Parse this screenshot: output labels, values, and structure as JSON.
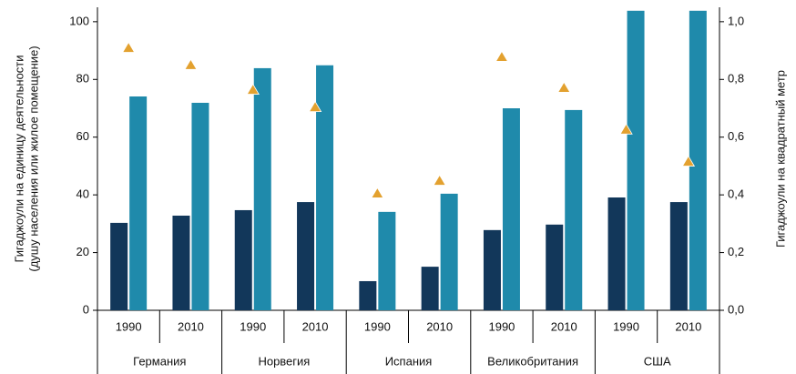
{
  "chart_data": {
    "type": "bar",
    "ylabel": [
      "Гигаджоули на единицу деятельности",
      "(душу населения или жилое помещение)"
    ],
    "y2label": "Гигаджоули на квадратный метр",
    "groups": [
      "Германия",
      "Норвегия",
      "Испания",
      "Великобритания",
      "США"
    ],
    "categories": [
      "1990",
      "2010",
      "1990",
      "2010",
      "1990",
      "2010",
      "1990",
      "2010",
      "1990",
      "2010"
    ],
    "series": [
      {
        "color": "#12375a",
        "values": [
          30.3,
          32.8,
          34.7,
          37.5,
          10.1,
          15.1,
          27.8,
          29.7,
          39.1,
          37.5
        ]
      },
      {
        "color": "#1f8aab",
        "values": [
          74.1,
          71.9,
          83.9,
          84.9,
          34.1,
          40.4,
          70,
          69.4,
          103.8,
          103.8
        ]
      },
      {
        "color": "#e3a12f",
        "marker": "triangle",
        "axis": "y2",
        "values": [
          0.908,
          0.849,
          0.763,
          0.703,
          0.404,
          0.448,
          0.877,
          0.77,
          0.625,
          0.514
        ]
      }
    ],
    "ylim": [
      0,
      105
    ],
    "yticks": [
      0,
      20,
      40,
      60,
      80,
      100
    ],
    "y2lim": [
      0,
      1.05
    ],
    "y2ticks": [
      {
        "value": 0,
        "label": "0,0"
      },
      {
        "value": 0.2,
        "label": "0,2"
      },
      {
        "value": 0.4,
        "label": "0,4"
      },
      {
        "value": 0.6,
        "label": "0,6"
      },
      {
        "value": 0.8,
        "label": "0,8"
      },
      {
        "value": 1,
        "label": "1,0"
      }
    ]
  }
}
